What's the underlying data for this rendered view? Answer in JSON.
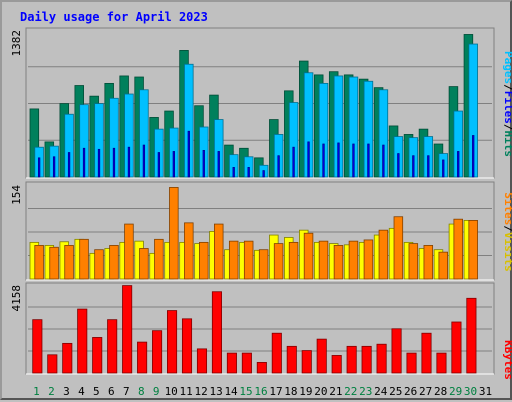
{
  "title": "Daily usage for April 2023",
  "colors": {
    "hits": "#00805c",
    "files": "#00c0ff",
    "pages": "#0000ff",
    "visits": "#ffff00",
    "sites": "#ff8000",
    "kbytes": "#ff0000",
    "title": "#0000ff",
    "plot_bg": "#c0c0c0",
    "weekend_day": "#008040",
    "weekday": "#000000"
  },
  "chart_data": [
    {
      "type": "bar",
      "panel": "top",
      "ymax_label": "1382",
      "ylim": [
        0,
        1382
      ],
      "x": [
        1,
        2,
        3,
        4,
        5,
        6,
        7,
        8,
        9,
        10,
        11,
        12,
        13,
        14,
        15,
        16,
        17,
        18,
        19,
        20,
        21,
        22,
        23,
        24,
        25,
        26,
        27,
        28,
        29,
        30,
        31
      ],
      "series": [
        {
          "name": "Hits",
          "values": [
            640,
            330,
            690,
            860,
            760,
            880,
            950,
            940,
            560,
            620,
            1190,
            670,
            770,
            300,
            270,
            180,
            540,
            810,
            1090,
            960,
            990,
            960,
            920,
            840,
            480,
            400,
            450,
            310,
            850,
            1340,
            0
          ]
        },
        {
          "name": "Files",
          "values": [
            280,
            290,
            590,
            680,
            690,
            740,
            780,
            820,
            450,
            460,
            1060,
            470,
            540,
            210,
            190,
            110,
            400,
            700,
            980,
            880,
            950,
            940,
            900,
            820,
            380,
            370,
            380,
            220,
            620,
            1250,
            0
          ]
        },
        {
          "name": "Pages",
          "values": [
            180,
            190,
            230,
            270,
            260,
            270,
            280,
            300,
            230,
            240,
            430,
            250,
            240,
            90,
            90,
            60,
            200,
            280,
            330,
            310,
            320,
            310,
            310,
            300,
            220,
            200,
            200,
            160,
            240,
            390,
            0
          ]
        }
      ]
    },
    {
      "type": "bar",
      "panel": "middle",
      "ymax_label": "154",
      "ylim": [
        0,
        154
      ],
      "x": [
        1,
        2,
        3,
        4,
        5,
        6,
        7,
        8,
        9,
        10,
        11,
        12,
        13,
        14,
        15,
        16,
        17,
        18,
        19,
        20,
        21,
        22,
        23,
        24,
        25,
        26,
        27,
        28,
        29,
        30,
        31
      ],
      "series": [
        {
          "name": "Visits",
          "values": [
            60,
            55,
            61,
            65,
            42,
            50,
            60,
            62,
            42,
            60,
            60,
            58,
            78,
            48,
            60,
            47,
            72,
            68,
            80,
            60,
            58,
            56,
            60,
            72,
            83,
            60,
            50,
            48,
            90,
            96,
            0
          ]
        },
        {
          "name": "Sites",
          "values": [
            55,
            52,
            55,
            65,
            48,
            55,
            90,
            50,
            65,
            150,
            92,
            60,
            90,
            62,
            62,
            48,
            58,
            60,
            75,
            62,
            55,
            62,
            64,
            80,
            102,
            58,
            55,
            44,
            98,
            96,
            0
          ]
        }
      ]
    },
    {
      "type": "bar",
      "panel": "bottom",
      "ymax_label": "4158",
      "ylim": [
        0,
        4158
      ],
      "x": [
        1,
        2,
        3,
        4,
        5,
        6,
        7,
        8,
        9,
        10,
        11,
        12,
        13,
        14,
        15,
        16,
        17,
        18,
        19,
        20,
        21,
        22,
        23,
        24,
        25,
        26,
        27,
        28,
        29,
        30,
        31
      ],
      "series": [
        {
          "name": "KBytes",
          "values": [
            2520,
            860,
            1400,
            3020,
            1680,
            2520,
            4130,
            1460,
            2000,
            2950,
            2560,
            1140,
            3840,
            940,
            940,
            500,
            1880,
            1260,
            1060,
            1600,
            830,
            1260,
            1260,
            1360,
            2090,
            940,
            1880,
            940,
            2410,
            3530,
            0
          ]
        }
      ]
    }
  ],
  "top_axis_labels": [
    "Pages",
    "Files",
    "Hits"
  ],
  "middle_axis_labels": [
    "Sites",
    "Visits"
  ],
  "bottom_axis_labels": [
    "KBytes"
  ],
  "separator": "/",
  "weekend_days": [
    1,
    2,
    8,
    9,
    15,
    16,
    22,
    23,
    29,
    30
  ]
}
